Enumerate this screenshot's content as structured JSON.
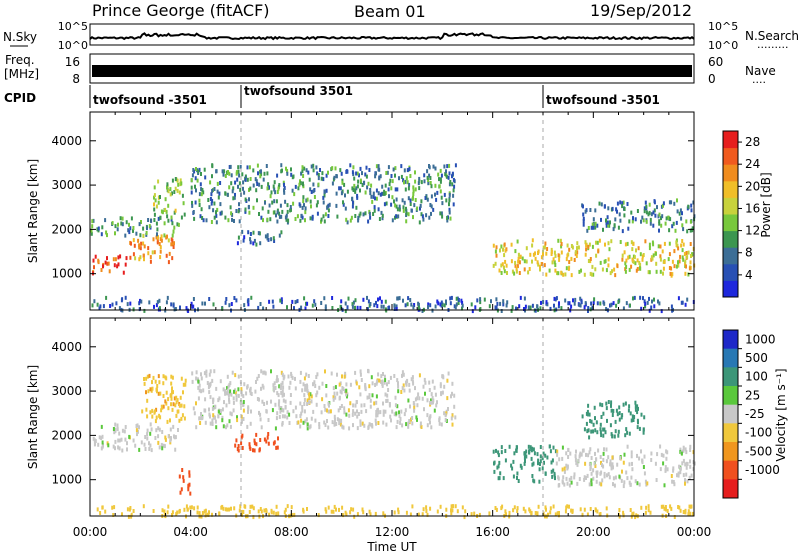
{
  "header": {
    "station": "Prince George (fitACF)",
    "beam": "Beam 01",
    "date": "19/Sep/2012"
  },
  "left_labels": {
    "nsky": "N.Sky",
    "freq_line1": "Freq.",
    "freq_line2": "[MHz]",
    "cpid": "CPID"
  },
  "right_labels": {
    "nsearch": "N.Search",
    "nsearch_dots": "·········",
    "nave": "Nave",
    "nave_dots": "····"
  },
  "noise_axis": {
    "left_ticks": [
      "10^5",
      "10^0"
    ],
    "right_ticks": [
      "10^5",
      "10^0"
    ]
  },
  "freq_axis": {
    "left_ticks": [
      "16",
      "8"
    ],
    "right_ticks": [
      "60",
      "0"
    ]
  },
  "cpid_segments": [
    {
      "label": "twofsound -3501",
      "start_hour": 0
    },
    {
      "label": "twofsound 3501",
      "start_hour": 6
    },
    {
      "label": "twofsound -3501",
      "start_hour": 18
    }
  ],
  "time_axis": {
    "label": "Time UT",
    "ticks": [
      "00:00",
      "04:00",
      "08:00",
      "12:00",
      "16:00",
      "20:00",
      "00:00"
    ],
    "range_hours": [
      0,
      24
    ],
    "minor_step_hours": 1
  },
  "range_axis": {
    "label": "Slant Range [km]",
    "ticks": [
      "1000",
      "2000",
      "3000",
      "4000"
    ],
    "range_km": [
      180,
      4650
    ]
  },
  "power_scale": {
    "label": "Power [dB]",
    "ticks": [
      "4",
      "8",
      "12",
      "16",
      "20",
      "24",
      "28"
    ],
    "colors": [
      "#1e28dc",
      "#2850b4",
      "#3c6e96",
      "#3c9650",
      "#78c83c",
      "#c8d23c",
      "#f0be28",
      "#f08c1e",
      "#f05a1e",
      "#e61e1e"
    ]
  },
  "velocity_scale": {
    "label": "Velocity [m s⁻¹]",
    "ticks": [
      "1000",
      "500",
      "100",
      "25",
      "-25",
      "-100",
      "-500",
      "-1000"
    ],
    "colors": [
      "#1e28c8",
      "#2878b4",
      "#3c9678",
      "#5ac83c",
      "#c8c8c8",
      "#f0c83c",
      "#f0961e",
      "#f0501e",
      "#e61e1e"
    ]
  },
  "chart_data": [
    {
      "type": "heatmap",
      "title": "Power",
      "xlabel": "Time UT",
      "ylabel": "Slant Range [km]",
      "xlim_hours": [
        0,
        24
      ],
      "ylim_km": [
        180,
        4650
      ],
      "colorbar_label": "Power [dB]",
      "colorbar_ticks": [
        4,
        8,
        12,
        16,
        20,
        24,
        28
      ],
      "colorbar_range": [
        0,
        30
      ],
      "echo_bands": [
        {
          "t": [
            0.0,
            1.5
          ],
          "r": [
            1050,
            1450
          ],
          "power": 26
        },
        {
          "t": [
            1.5,
            3.5
          ],
          "r": [
            1300,
            1900
          ],
          "power": 22
        },
        {
          "t": [
            0.0,
            3.5
          ],
          "r": [
            1900,
            2300
          ],
          "power": 10
        },
        {
          "t": [
            2.5,
            3.8
          ],
          "r": [
            2300,
            3200
          ],
          "power": 14
        },
        {
          "t": [
            4.0,
            14.5
          ],
          "r": [
            2200,
            3500
          ],
          "power": 9
        },
        {
          "t": [
            5.7,
            7.6
          ],
          "r": [
            1700,
            2000
          ],
          "power": 7
        },
        {
          "t": [
            16.0,
            24.0
          ],
          "r": [
            1000,
            1800
          ],
          "power": 18
        },
        {
          "t": [
            19.5,
            24.0
          ],
          "r": [
            2000,
            2700
          ],
          "power": 8
        },
        {
          "t": [
            0.0,
            24.0
          ],
          "r": [
            200,
            500
          ],
          "power": 6
        }
      ]
    },
    {
      "type": "heatmap",
      "title": "Velocity",
      "xlabel": "Time UT",
      "ylabel": "Slant Range [km]",
      "xlim_hours": [
        0,
        24
      ],
      "ylim_km": [
        180,
        4650
      ],
      "colorbar_label": "Velocity [m s⁻¹]",
      "colorbar_ticks": [
        1000,
        500,
        100,
        25,
        -25,
        -100,
        -500,
        -1000
      ],
      "echo_bands": [
        {
          "t": [
            0.0,
            3.5
          ],
          "r": [
            1700,
            2300
          ],
          "velocity": 0
        },
        {
          "t": [
            2.0,
            3.8
          ],
          "r": [
            2300,
            3400
          ],
          "velocity": -80
        },
        {
          "t": [
            3.5,
            4.0
          ],
          "r": [
            700,
            1300
          ],
          "velocity": -900
        },
        {
          "t": [
            5.7,
            7.5
          ],
          "r": [
            1700,
            2100
          ],
          "velocity": -900
        },
        {
          "t": [
            4.0,
            14.5
          ],
          "r": [
            2200,
            3500
          ],
          "velocity": 0
        },
        {
          "t": [
            16.0,
            18.5
          ],
          "r": [
            1000,
            1800
          ],
          "velocity": 300
        },
        {
          "t": [
            18.5,
            24.0
          ],
          "r": [
            900,
            1800
          ],
          "velocity": 0
        },
        {
          "t": [
            19.5,
            22.0
          ],
          "r": [
            2000,
            2800
          ],
          "velocity": 400
        },
        {
          "t": [
            0.0,
            24.0
          ],
          "r": [
            200,
            450
          ],
          "velocity": -60
        }
      ]
    }
  ]
}
